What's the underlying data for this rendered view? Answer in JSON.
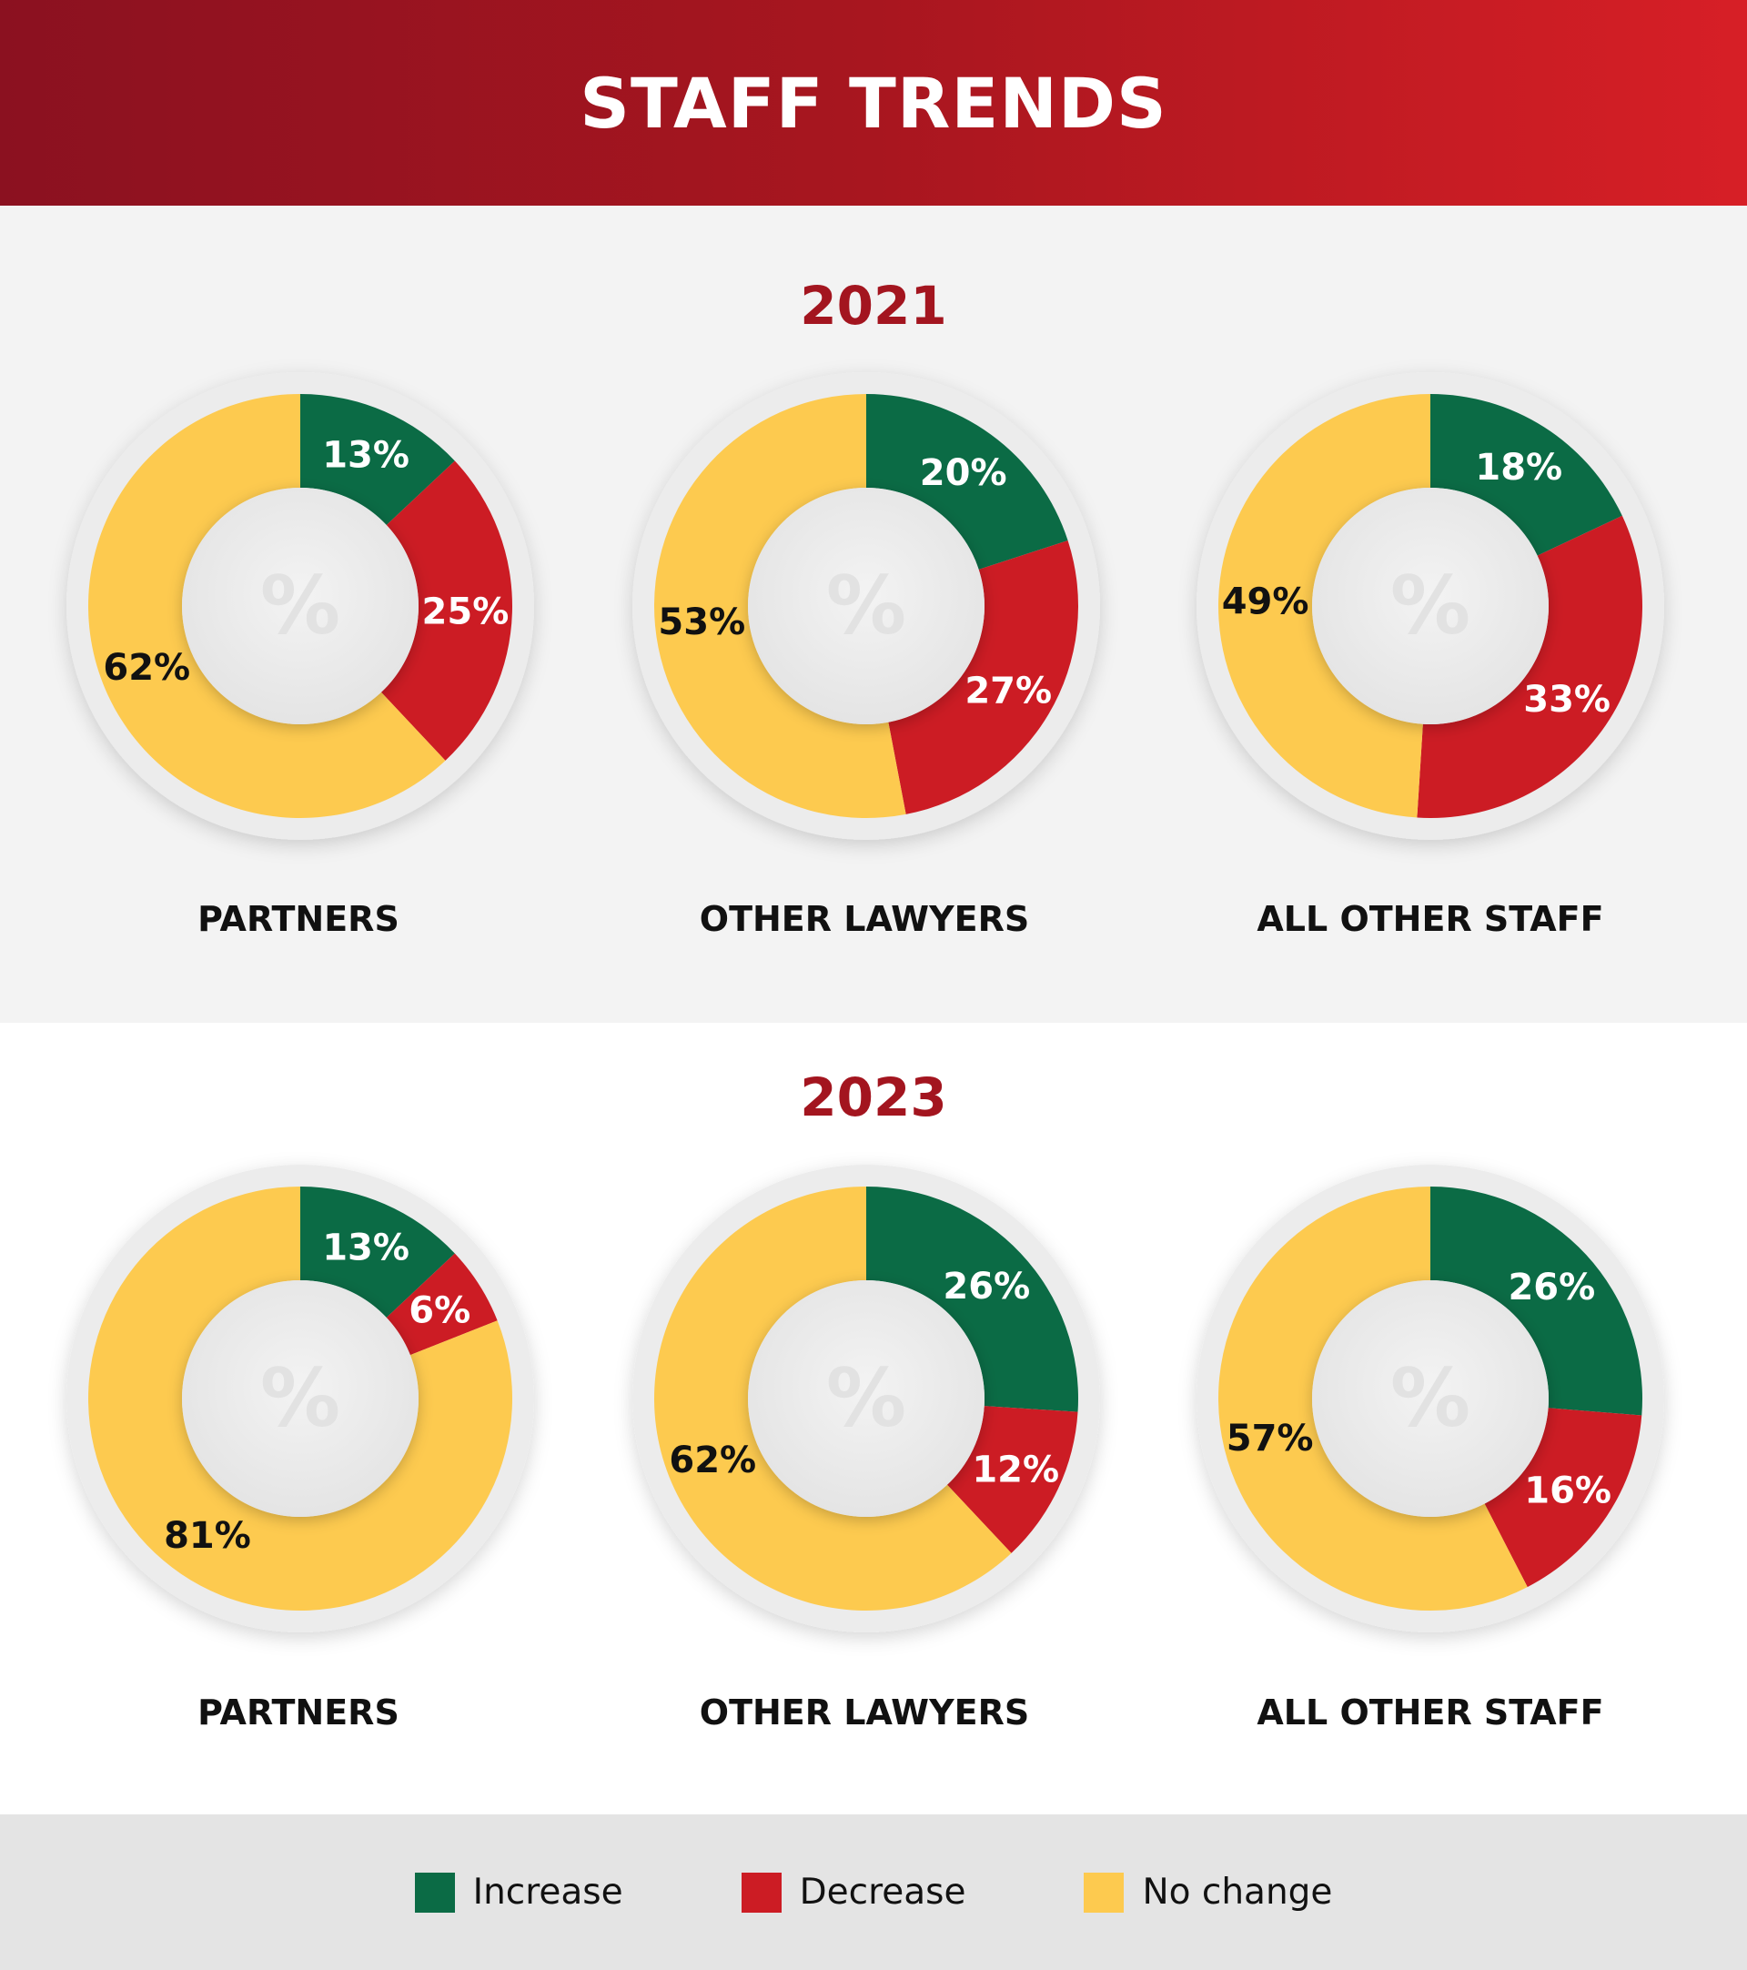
{
  "header": {
    "title": "STAFF TRENDS"
  },
  "colors": {
    "increase": "#0b6b45",
    "decrease": "#cc1c24",
    "no_change": "#fdca4f",
    "year_title": "#a3151f"
  },
  "center_symbol": "%",
  "legend": [
    {
      "key": "increase",
      "label": "Increase"
    },
    {
      "key": "decrease",
      "label": "Decrease"
    },
    {
      "key": "no_change",
      "label": "No change"
    }
  ],
  "chart_data": [
    {
      "type": "pie",
      "year": "2021",
      "title": "PARTNERS",
      "slices": [
        {
          "category": "Increase",
          "value": 13,
          "label": "13%"
        },
        {
          "category": "Decrease",
          "value": 25,
          "label": "25%"
        },
        {
          "category": "No change",
          "value": 62,
          "label": "62%"
        }
      ]
    },
    {
      "type": "pie",
      "year": "2021",
      "title": "OTHER LAWYERS",
      "slices": [
        {
          "category": "Increase",
          "value": 20,
          "label": "20%"
        },
        {
          "category": "Decrease",
          "value": 27,
          "label": "27%"
        },
        {
          "category": "No change",
          "value": 53,
          "label": "53%"
        }
      ]
    },
    {
      "type": "pie",
      "year": "2021",
      "title": "ALL OTHER STAFF",
      "slices": [
        {
          "category": "Increase",
          "value": 18,
          "label": "18%"
        },
        {
          "category": "Decrease",
          "value": 33,
          "label": "33%"
        },
        {
          "category": "No change",
          "value": 49,
          "label": "49%"
        }
      ]
    },
    {
      "type": "pie",
      "year": "2023",
      "title": "PARTNERS",
      "slices": [
        {
          "category": "Increase",
          "value": 13,
          "label": "13%"
        },
        {
          "category": "Decrease",
          "value": 6,
          "label": "6%"
        },
        {
          "category": "No change",
          "value": 81,
          "label": "81%"
        }
      ]
    },
    {
      "type": "pie",
      "year": "2023",
      "title": "OTHER LAWYERS",
      "slices": [
        {
          "category": "Increase",
          "value": 26,
          "label": "26%"
        },
        {
          "category": "Decrease",
          "value": 12,
          "label": "12%"
        },
        {
          "category": "No change",
          "value": 62,
          "label": "62%"
        }
      ]
    },
    {
      "type": "pie",
      "year": "2023",
      "title": "ALL OTHER STAFF",
      "slices": [
        {
          "category": "Increase",
          "value": 26,
          "label": "26%"
        },
        {
          "category": "Decrease",
          "value": 16,
          "label": "16%"
        },
        {
          "category": "No change",
          "value": 57,
          "label": "57%"
        }
      ]
    }
  ]
}
